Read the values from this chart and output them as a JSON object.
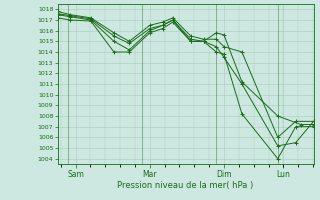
{
  "xlabel": "Pression niveau de la mer( hPa )",
  "bg_color": "#cce8e0",
  "grid_color": "#aaccbb",
  "line_color": "#1a6b1a",
  "ylim": [
    1003.5,
    1018.5
  ],
  "yticks": [
    1004,
    1005,
    1006,
    1007,
    1008,
    1009,
    1010,
    1011,
    1012,
    1013,
    1014,
    1015,
    1016,
    1017,
    1018
  ],
  "xtick_labels": [
    "Sam",
    "Mar",
    "Dim",
    "Lun"
  ],
  "xtick_positions": [
    0.07,
    0.36,
    0.65,
    0.88
  ],
  "vline_positions": [
    0.04,
    0.33,
    0.62,
    0.86
  ],
  "lines": [
    {
      "x": [
        0.0,
        0.05,
        0.13,
        0.22,
        0.28,
        0.36,
        0.41,
        0.45,
        0.52,
        0.57,
        0.62,
        0.65,
        0.72,
        0.86,
        0.95,
        1.0
      ],
      "y": [
        1017.2,
        1017.0,
        1016.9,
        1014.0,
        1014.0,
        1015.8,
        1016.2,
        1016.8,
        1015.0,
        1015.0,
        1015.8,
        1015.6,
        1011.2,
        1008.0,
        1007.2,
        1007.2
      ]
    },
    {
      "x": [
        0.0,
        0.05,
        0.13,
        0.22,
        0.28,
        0.36,
        0.41,
        0.45,
        0.52,
        0.57,
        0.62,
        0.65,
        0.72,
        0.86,
        0.93,
        1.0
      ],
      "y": [
        1017.5,
        1017.3,
        1017.0,
        1015.0,
        1014.2,
        1016.0,
        1016.5,
        1017.0,
        1015.2,
        1015.0,
        1014.0,
        1013.8,
        1008.2,
        1004.0,
        1007.0,
        1007.0
      ]
    },
    {
      "x": [
        0.0,
        0.05,
        0.13,
        0.22,
        0.28,
        0.36,
        0.41,
        0.45,
        0.52,
        0.57,
        0.62,
        0.65,
        0.72,
        0.86,
        0.93,
        1.0
      ],
      "y": [
        1017.6,
        1017.4,
        1017.1,
        1015.5,
        1014.8,
        1016.2,
        1016.5,
        1017.0,
        1015.0,
        1015.0,
        1014.5,
        1013.5,
        1011.0,
        1005.2,
        1005.5,
        1007.5
      ]
    },
    {
      "x": [
        0.0,
        0.05,
        0.13,
        0.22,
        0.28,
        0.36,
        0.41,
        0.45,
        0.52,
        0.57,
        0.62,
        0.65,
        0.72,
        0.86,
        0.93,
        1.0
      ],
      "y": [
        1017.8,
        1017.5,
        1017.2,
        1015.8,
        1015.0,
        1016.5,
        1016.8,
        1017.2,
        1015.5,
        1015.2,
        1015.2,
        1014.5,
        1014.0,
        1006.0,
        1007.5,
        1007.5
      ]
    }
  ]
}
